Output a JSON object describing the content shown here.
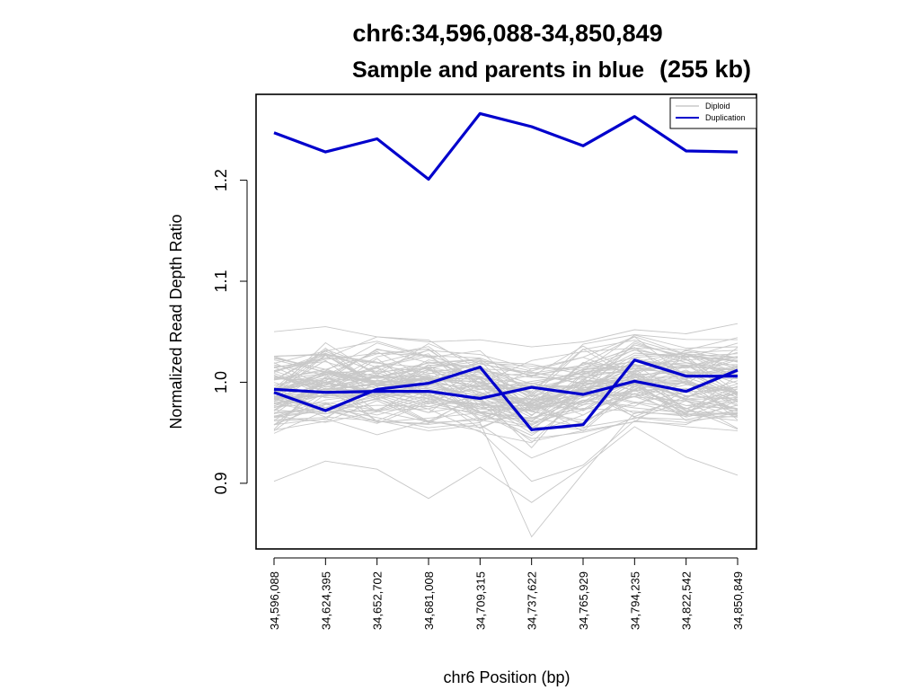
{
  "chart_data": {
    "type": "line",
    "title": "chr6:34,596,088-34,850,849",
    "subtitle": "Sample and parents in blue",
    "subtitle_suffix": "(255 kb)",
    "xlabel": "chr6 Position (bp)",
    "ylabel": "Normalized Read Depth Ratio",
    "categories": [
      "34,596,088",
      "34,624,395",
      "34,652,702",
      "34,681,008",
      "34,709,315",
      "34,737,622",
      "34,765,929",
      "34,794,235",
      "34,822,542",
      "34,850,849"
    ],
    "y_ticks": [
      0.9,
      1.0,
      1.1,
      1.2
    ],
    "y_tick_labels": [
      "0.9",
      "1.0",
      "1.1",
      "1.2"
    ],
    "ylim": [
      0.835,
      1.285
    ],
    "grid": false,
    "legend": {
      "position": "top-right",
      "entries": [
        {
          "label": "Diploid",
          "color": "#bdbdbd"
        },
        {
          "label": "Duplication",
          "color": "#0000cc"
        }
      ]
    },
    "series_colors": {
      "diploid": "#c8c8c8",
      "sample": "#0000cc"
    },
    "diploid_background": [
      [
        0.902,
        0.922,
        0.914,
        0.885,
        0.916,
        0.881,
        0.916,
        0.956,
        0.926,
        0.908
      ],
      [
        0.958,
        0.964,
        0.948,
        0.962,
        0.952,
        0.902,
        0.918,
        0.962,
        0.956,
        0.952
      ],
      [
        0.97,
        0.975,
        0.965,
        0.955,
        0.96,
        0.847,
        0.91,
        0.97,
        0.968,
        0.962
      ],
      [
        1.05,
        1.055,
        1.045,
        1.04,
        1.042,
        1.035,
        1.04,
        1.052,
        1.048,
        1.058
      ],
      [
        0.965,
        0.972,
        0.962,
        0.952,
        0.958,
        0.925,
        0.945,
        0.965,
        0.96,
        0.97
      ]
    ],
    "series": [
      {
        "name": "Duplication",
        "values": [
          1.247,
          1.228,
          1.241,
          1.201,
          1.266,
          1.253,
          1.234,
          1.263,
          1.229,
          1.228
        ]
      },
      {
        "values": [
          0.99,
          0.972,
          0.993,
          0.999,
          1.015,
          0.953,
          0.958,
          1.022,
          1.006,
          1.006
        ]
      },
      {
        "values": [
          0.993,
          0.99,
          0.991,
          0.991,
          0.984,
          0.995,
          0.988,
          1.001,
          0.991,
          1.012
        ]
      }
    ]
  }
}
